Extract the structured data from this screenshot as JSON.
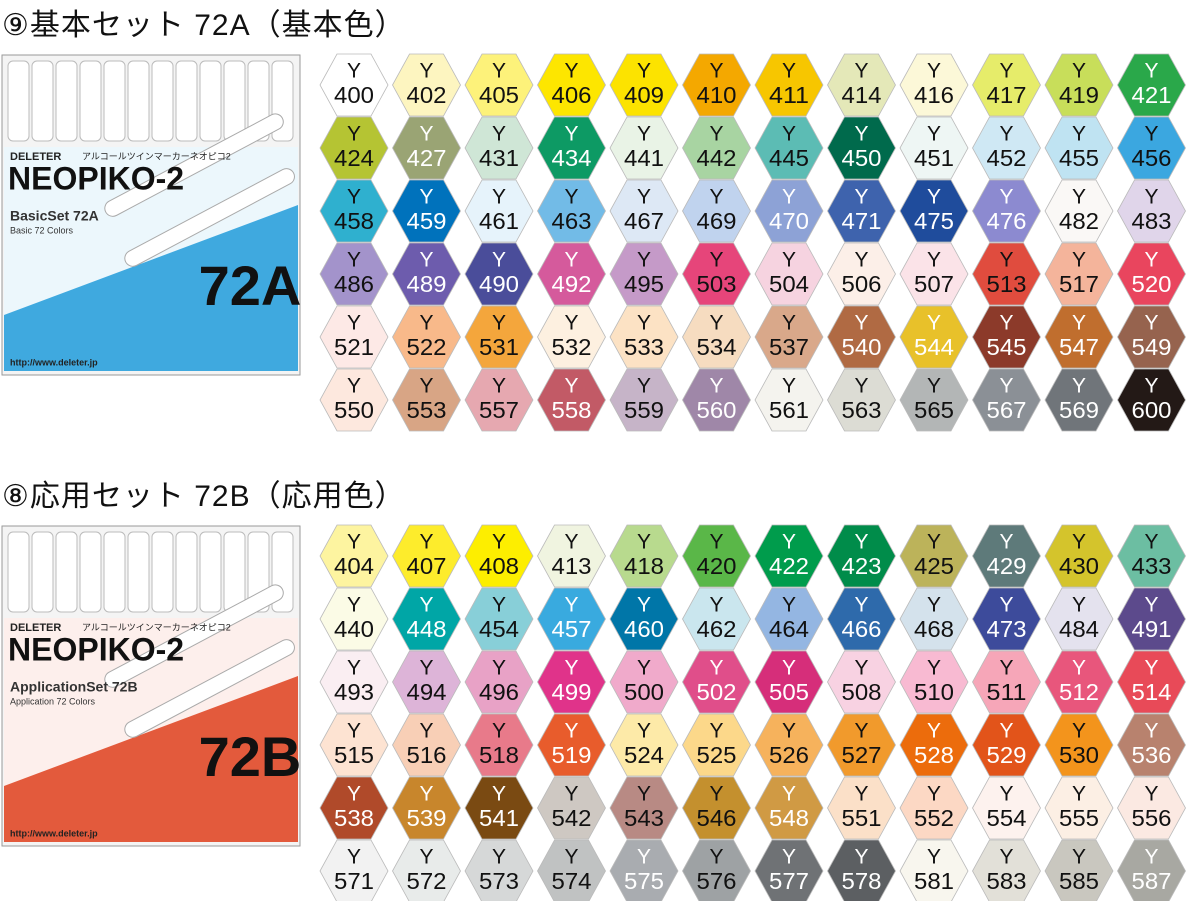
{
  "sections": [
    {
      "title": "⑨基本セット 72A（基本色）",
      "package": {
        "brand": "DELETER",
        "tagline": "アルコールツインマーカーネオピコ2",
        "name": "NEOPIKO-2",
        "set": "BasicSet 72A",
        "subtitle": "Basic 72 Colors",
        "code": "72A",
        "url": "http://www.deleter.jp",
        "band_color": "#3fa9df"
      },
      "swatches": [
        {
          "prefix": "Y",
          "code": "400",
          "color": "#ffffff",
          "text": "#111"
        },
        {
          "prefix": "Y",
          "code": "402",
          "color": "#fdf5c0",
          "text": "#111"
        },
        {
          "prefix": "Y",
          "code": "405",
          "color": "#fdf27a",
          "text": "#111"
        },
        {
          "prefix": "Y",
          "code": "406",
          "color": "#fde600",
          "text": "#111"
        },
        {
          "prefix": "Y",
          "code": "409",
          "color": "#fce300",
          "text": "#111"
        },
        {
          "prefix": "Y",
          "code": "410",
          "color": "#f4a800",
          "text": "#111"
        },
        {
          "prefix": "Y",
          "code": "411",
          "color": "#f7c600",
          "text": "#111"
        },
        {
          "prefix": "Y",
          "code": "414",
          "color": "#e4e8b8",
          "text": "#111"
        },
        {
          "prefix": "Y",
          "code": "416",
          "color": "#fcf8d8",
          "text": "#111"
        },
        {
          "prefix": "Y",
          "code": "417",
          "color": "#e6ec6a",
          "text": "#111"
        },
        {
          "prefix": "Y",
          "code": "419",
          "color": "#c8de5a",
          "text": "#111"
        },
        {
          "prefix": "Y",
          "code": "421",
          "color": "#2aa84a",
          "text": "#fff"
        },
        {
          "prefix": "Y",
          "code": "424",
          "color": "#b5c433",
          "text": "#111"
        },
        {
          "prefix": "Y",
          "code": "427",
          "color": "#9aa474",
          "text": "#fff"
        },
        {
          "prefix": "Y",
          "code": "431",
          "color": "#cfe6d6",
          "text": "#111"
        },
        {
          "prefix": "Y",
          "code": "434",
          "color": "#0d9a64",
          "text": "#fff"
        },
        {
          "prefix": "Y",
          "code": "441",
          "color": "#e9f3e6",
          "text": "#111"
        },
        {
          "prefix": "Y",
          "code": "442",
          "color": "#a8d4a2",
          "text": "#111"
        },
        {
          "prefix": "Y",
          "code": "445",
          "color": "#5cbcb4",
          "text": "#111"
        },
        {
          "prefix": "Y",
          "code": "450",
          "color": "#006a4c",
          "text": "#fff"
        },
        {
          "prefix": "Y",
          "code": "451",
          "color": "#eef6f4",
          "text": "#111"
        },
        {
          "prefix": "Y",
          "code": "452",
          "color": "#cfe8f4",
          "text": "#111"
        },
        {
          "prefix": "Y",
          "code": "455",
          "color": "#bfe3f2",
          "text": "#111"
        },
        {
          "prefix": "Y",
          "code": "456",
          "color": "#3ba7e0",
          "text": "#111"
        },
        {
          "prefix": "Y",
          "code": "458",
          "color": "#2fb0cf",
          "text": "#111"
        },
        {
          "prefix": "Y",
          "code": "459",
          "color": "#0072bc",
          "text": "#fff"
        },
        {
          "prefix": "Y",
          "code": "461",
          "color": "#e6f3fb",
          "text": "#111"
        },
        {
          "prefix": "Y",
          "code": "463",
          "color": "#72bbe7",
          "text": "#111"
        },
        {
          "prefix": "Y",
          "code": "467",
          "color": "#dde8f5",
          "text": "#111"
        },
        {
          "prefix": "Y",
          "code": "469",
          "color": "#c0d3ee",
          "text": "#111"
        },
        {
          "prefix": "Y",
          "code": "470",
          "color": "#8da2d6",
          "text": "#fff"
        },
        {
          "prefix": "Y",
          "code": "471",
          "color": "#3e63ad",
          "text": "#fff"
        },
        {
          "prefix": "Y",
          "code": "475",
          "color": "#1f4c9c",
          "text": "#fff"
        },
        {
          "prefix": "Y",
          "code": "476",
          "color": "#8c8ad0",
          "text": "#fff"
        },
        {
          "prefix": "Y",
          "code": "482",
          "color": "#faf8f6",
          "text": "#111"
        },
        {
          "prefix": "Y",
          "code": "483",
          "color": "#e0d5ea",
          "text": "#111"
        },
        {
          "prefix": "Y",
          "code": "486",
          "color": "#a393cb",
          "text": "#111"
        },
        {
          "prefix": "Y",
          "code": "489",
          "color": "#6d5cad",
          "text": "#fff"
        },
        {
          "prefix": "Y",
          "code": "490",
          "color": "#4a4d9a",
          "text": "#fff"
        },
        {
          "prefix": "Y",
          "code": "492",
          "color": "#d55a9c",
          "text": "#fff"
        },
        {
          "prefix": "Y",
          "code": "495",
          "color": "#c59ac8",
          "text": "#111"
        },
        {
          "prefix": "Y",
          "code": "503",
          "color": "#e6457a",
          "text": "#111"
        },
        {
          "prefix": "Y",
          "code": "504",
          "color": "#f6d3e0",
          "text": "#111"
        },
        {
          "prefix": "Y",
          "code": "506",
          "color": "#fcefe8",
          "text": "#111"
        },
        {
          "prefix": "Y",
          "code": "507",
          "color": "#fbe3e8",
          "text": "#111"
        },
        {
          "prefix": "Y",
          "code": "513",
          "color": "#e04c3e",
          "text": "#111"
        },
        {
          "prefix": "Y",
          "code": "517",
          "color": "#f4b49b",
          "text": "#111"
        },
        {
          "prefix": "Y",
          "code": "520",
          "color": "#e9455e",
          "text": "#fff"
        },
        {
          "prefix": "Y",
          "code": "521",
          "color": "#fde9e6",
          "text": "#111"
        },
        {
          "prefix": "Y",
          "code": "522",
          "color": "#f8b98a",
          "text": "#111"
        },
        {
          "prefix": "Y",
          "code": "531",
          "color": "#f4a63c",
          "text": "#111"
        },
        {
          "prefix": "Y",
          "code": "532",
          "color": "#fdf0e0",
          "text": "#111"
        },
        {
          "prefix": "Y",
          "code": "533",
          "color": "#fce2c4",
          "text": "#111"
        },
        {
          "prefix": "Y",
          "code": "534",
          "color": "#f6dcc0",
          "text": "#111"
        },
        {
          "prefix": "Y",
          "code": "537",
          "color": "#d9a88a",
          "text": "#111"
        },
        {
          "prefix": "Y",
          "code": "540",
          "color": "#b06a43",
          "text": "#fff"
        },
        {
          "prefix": "Y",
          "code": "544",
          "color": "#e8c12a",
          "text": "#fff"
        },
        {
          "prefix": "Y",
          "code": "545",
          "color": "#8c3a2a",
          "text": "#fff"
        },
        {
          "prefix": "Y",
          "code": "547",
          "color": "#c06e2e",
          "text": "#fff"
        },
        {
          "prefix": "Y",
          "code": "549",
          "color": "#96634e",
          "text": "#fff"
        },
        {
          "prefix": "Y",
          "code": "550",
          "color": "#fde8de",
          "text": "#111"
        },
        {
          "prefix": "Y",
          "code": "553",
          "color": "#d8a585",
          "text": "#111"
        },
        {
          "prefix": "Y",
          "code": "557",
          "color": "#e6a8b0",
          "text": "#111"
        },
        {
          "prefix": "Y",
          "code": "558",
          "color": "#c25a66",
          "text": "#fff"
        },
        {
          "prefix": "Y",
          "code": "559",
          "color": "#c6b4c8",
          "text": "#111"
        },
        {
          "prefix": "Y",
          "code": "560",
          "color": "#9f87a8",
          "text": "#fff"
        },
        {
          "prefix": "Y",
          "code": "561",
          "color": "#f4f3ee",
          "text": "#111"
        },
        {
          "prefix": "Y",
          "code": "563",
          "color": "#dcdcd4",
          "text": "#111"
        },
        {
          "prefix": "Y",
          "code": "565",
          "color": "#b3b6b6",
          "text": "#111"
        },
        {
          "prefix": "Y",
          "code": "567",
          "color": "#8b9096",
          "text": "#fff"
        },
        {
          "prefix": "Y",
          "code": "569",
          "color": "#70757a",
          "text": "#fff"
        },
        {
          "prefix": "Y",
          "code": "600",
          "color": "#231916",
          "text": "#fff"
        }
      ]
    },
    {
      "title": "⑧応用セット 72B（応用色）",
      "package": {
        "brand": "DELETER",
        "tagline": "アルコールツインマーカーネオピコ2",
        "name": "NEOPIKO-2",
        "set": "ApplicationSet 72B",
        "subtitle": "Application 72 Colors",
        "code": "72B",
        "url": "http://www.deleter.jp",
        "band_color": "#e35a3c"
      },
      "swatches": [
        {
          "prefix": "Y",
          "code": "404",
          "color": "#fdf4a0",
          "text": "#111"
        },
        {
          "prefix": "Y",
          "code": "407",
          "color": "#fdec2c",
          "text": "#111"
        },
        {
          "prefix": "Y",
          "code": "408",
          "color": "#fdee00",
          "text": "#111"
        },
        {
          "prefix": "Y",
          "code": "413",
          "color": "#f0f4e0",
          "text": "#111"
        },
        {
          "prefix": "Y",
          "code": "418",
          "color": "#b8da8e",
          "text": "#111"
        },
        {
          "prefix": "Y",
          "code": "420",
          "color": "#5ab748",
          "text": "#111"
        },
        {
          "prefix": "Y",
          "code": "422",
          "color": "#009c4c",
          "text": "#fff"
        },
        {
          "prefix": "Y",
          "code": "423",
          "color": "#008c4a",
          "text": "#fff"
        },
        {
          "prefix": "Y",
          "code": "425",
          "color": "#bcb35a",
          "text": "#111"
        },
        {
          "prefix": "Y",
          "code": "429",
          "color": "#5e7a7a",
          "text": "#fff"
        },
        {
          "prefix": "Y",
          "code": "430",
          "color": "#d4c42c",
          "text": "#111"
        },
        {
          "prefix": "Y",
          "code": "433",
          "color": "#6cbea2",
          "text": "#111"
        },
        {
          "prefix": "Y",
          "code": "440",
          "color": "#fbfbe6",
          "text": "#111"
        },
        {
          "prefix": "Y",
          "code": "448",
          "color": "#00a6a6",
          "text": "#fff"
        },
        {
          "prefix": "Y",
          "code": "454",
          "color": "#88cfd8",
          "text": "#111"
        },
        {
          "prefix": "Y",
          "code": "457",
          "color": "#39aadf",
          "text": "#fff"
        },
        {
          "prefix": "Y",
          "code": "460",
          "color": "#0076a8",
          "text": "#fff"
        },
        {
          "prefix": "Y",
          "code": "462",
          "color": "#cae6ee",
          "text": "#111"
        },
        {
          "prefix": "Y",
          "code": "464",
          "color": "#94b6e2",
          "text": "#111"
        },
        {
          "prefix": "Y",
          "code": "466",
          "color": "#2e6aab",
          "text": "#fff"
        },
        {
          "prefix": "Y",
          "code": "468",
          "color": "#d4e2ec",
          "text": "#111"
        },
        {
          "prefix": "Y",
          "code": "473",
          "color": "#3d4b9b",
          "text": "#fff"
        },
        {
          "prefix": "Y",
          "code": "484",
          "color": "#e4e2ee",
          "text": "#111"
        },
        {
          "prefix": "Y",
          "code": "491",
          "color": "#5c4a8c",
          "text": "#fff"
        },
        {
          "prefix": "Y",
          "code": "493",
          "color": "#faeef2",
          "text": "#111"
        },
        {
          "prefix": "Y",
          "code": "494",
          "color": "#ddb4d8",
          "text": "#111"
        },
        {
          "prefix": "Y",
          "code": "496",
          "color": "#e8a2c6",
          "text": "#111"
        },
        {
          "prefix": "Y",
          "code": "499",
          "color": "#e0338a",
          "text": "#fff"
        },
        {
          "prefix": "Y",
          "code": "500",
          "color": "#f0aacb",
          "text": "#111"
        },
        {
          "prefix": "Y",
          "code": "502",
          "color": "#e04e8a",
          "text": "#fff"
        },
        {
          "prefix": "Y",
          "code": "505",
          "color": "#d62e7a",
          "text": "#fff"
        },
        {
          "prefix": "Y",
          "code": "508",
          "color": "#f8d2e2",
          "text": "#111"
        },
        {
          "prefix": "Y",
          "code": "510",
          "color": "#f8bad2",
          "text": "#111"
        },
        {
          "prefix": "Y",
          "code": "511",
          "color": "#f6a6b8",
          "text": "#111"
        },
        {
          "prefix": "Y",
          "code": "512",
          "color": "#e8567c",
          "text": "#fff"
        },
        {
          "prefix": "Y",
          "code": "514",
          "color": "#e84a58",
          "text": "#fff"
        },
        {
          "prefix": "Y",
          "code": "515",
          "color": "#fde3d2",
          "text": "#111"
        },
        {
          "prefix": "Y",
          "code": "516",
          "color": "#f8cfb6",
          "text": "#111"
        },
        {
          "prefix": "Y",
          "code": "518",
          "color": "#e87a8a",
          "text": "#111"
        },
        {
          "prefix": "Y",
          "code": "519",
          "color": "#e85c2c",
          "text": "#fff"
        },
        {
          "prefix": "Y",
          "code": "524",
          "color": "#fdeaa8",
          "text": "#111"
        },
        {
          "prefix": "Y",
          "code": "525",
          "color": "#fcd88a",
          "text": "#111"
        },
        {
          "prefix": "Y",
          "code": "526",
          "color": "#f6b25c",
          "text": "#111"
        },
        {
          "prefix": "Y",
          "code": "527",
          "color": "#f19a2c",
          "text": "#111"
        },
        {
          "prefix": "Y",
          "code": "528",
          "color": "#ec6c0c",
          "text": "#fff"
        },
        {
          "prefix": "Y",
          "code": "529",
          "color": "#e2541a",
          "text": "#fff"
        },
        {
          "prefix": "Y",
          "code": "530",
          "color": "#f3941c",
          "text": "#111"
        },
        {
          "prefix": "Y",
          "code": "536",
          "color": "#b8826e",
          "text": "#fff"
        },
        {
          "prefix": "Y",
          "code": "538",
          "color": "#b04a2a",
          "text": "#fff"
        },
        {
          "prefix": "Y",
          "code": "539",
          "color": "#c8862c",
          "text": "#fff"
        },
        {
          "prefix": "Y",
          "code": "541",
          "color": "#7a4a12",
          "text": "#fff"
        },
        {
          "prefix": "Y",
          "code": "542",
          "color": "#cec8c2",
          "text": "#111"
        },
        {
          "prefix": "Y",
          "code": "543",
          "color": "#b88a84",
          "text": "#111"
        },
        {
          "prefix": "Y",
          "code": "546",
          "color": "#c4902e",
          "text": "#111"
        },
        {
          "prefix": "Y",
          "code": "548",
          "color": "#d09a44",
          "text": "#fff"
        },
        {
          "prefix": "Y",
          "code": "551",
          "color": "#fbe0c8",
          "text": "#111"
        },
        {
          "prefix": "Y",
          "code": "552",
          "color": "#fcd8c4",
          "text": "#111"
        },
        {
          "prefix": "Y",
          "code": "554",
          "color": "#fdf2ee",
          "text": "#111"
        },
        {
          "prefix": "Y",
          "code": "555",
          "color": "#fcefe4",
          "text": "#111"
        },
        {
          "prefix": "Y",
          "code": "556",
          "color": "#fbe9e2",
          "text": "#111"
        },
        {
          "prefix": "Y",
          "code": "571",
          "color": "#f2f2f2",
          "text": "#111"
        },
        {
          "prefix": "Y",
          "code": "572",
          "color": "#e8ebea",
          "text": "#111"
        },
        {
          "prefix": "Y",
          "code": "573",
          "color": "#d6d8d8",
          "text": "#111"
        },
        {
          "prefix": "Y",
          "code": "574",
          "color": "#c0c2c2",
          "text": "#111"
        },
        {
          "prefix": "Y",
          "code": "575",
          "color": "#a9acb0",
          "text": "#fff"
        },
        {
          "prefix": "Y",
          "code": "576",
          "color": "#9ea2a4",
          "text": "#111"
        },
        {
          "prefix": "Y",
          "code": "577",
          "color": "#6f7275",
          "text": "#fff"
        },
        {
          "prefix": "Y",
          "code": "578",
          "color": "#5c5f62",
          "text": "#fff"
        },
        {
          "prefix": "Y",
          "code": "581",
          "color": "#f8f6ee",
          "text": "#111"
        },
        {
          "prefix": "Y",
          "code": "583",
          "color": "#e2e0d8",
          "text": "#111"
        },
        {
          "prefix": "Y",
          "code": "585",
          "color": "#c9c7bf",
          "text": "#111"
        },
        {
          "prefix": "Y",
          "code": "587",
          "color": "#a8a8a2",
          "text": "#fff"
        }
      ]
    }
  ]
}
